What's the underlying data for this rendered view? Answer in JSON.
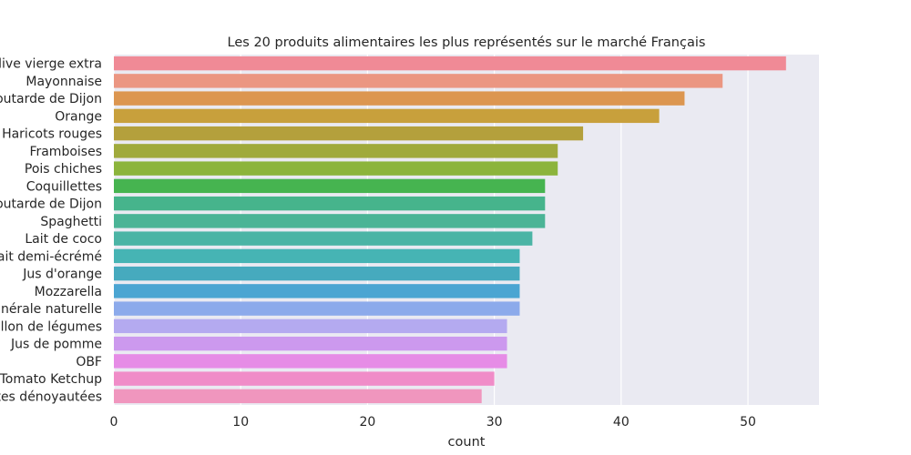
{
  "chart_data": {
    "type": "bar",
    "orientation": "horizontal",
    "title": "Les 20 produits alimentaires les plus représentés sur le marché Français",
    "xlabel": "count",
    "ylabel": "",
    "xlim": [
      0,
      55.6
    ],
    "xticks": [
      "0",
      "10",
      "20",
      "30",
      "40",
      "50"
    ],
    "grid": true,
    "categories": [
      "Huile d'olive vierge extra",
      "Mayonnaise",
      "Moutarde de Dijon",
      "Orange",
      "Haricots rouges",
      "Framboises",
      "Pois chiches",
      "Coquillettes",
      "Moutarde de Dijon",
      "Spaghetti",
      "Lait de coco",
      "Lait demi-écrémé",
      "Jus d'orange",
      "Mozzarella",
      "Eau minérale naturelle",
      "Bouillon de légumes",
      "Jus de pomme",
      "OBF",
      "Tomato Ketchup",
      "Dattes dénoyautées"
    ],
    "values": [
      53,
      48,
      45,
      43,
      37,
      35,
      35,
      34,
      34,
      34,
      33,
      32,
      32,
      32,
      32,
      31,
      31,
      31,
      30,
      29
    ],
    "colors": [
      "#f08a96",
      "#eb9682",
      "#dc9650",
      "#c8a03c",
      "#b4a03c",
      "#a0aa3c",
      "#8cb43c",
      "#46b450",
      "#46b48c",
      "#4bb496",
      "#4bb4a5",
      "#46b4b4",
      "#46aabe",
      "#4ba5d2",
      "#8caaeb",
      "#b4aaf0",
      "#cc99ee",
      "#e68ce6",
      "#f08cc8",
      "#f096be"
    ],
    "background": "#eaeaf2",
    "grid_color": "#ffffff"
  }
}
